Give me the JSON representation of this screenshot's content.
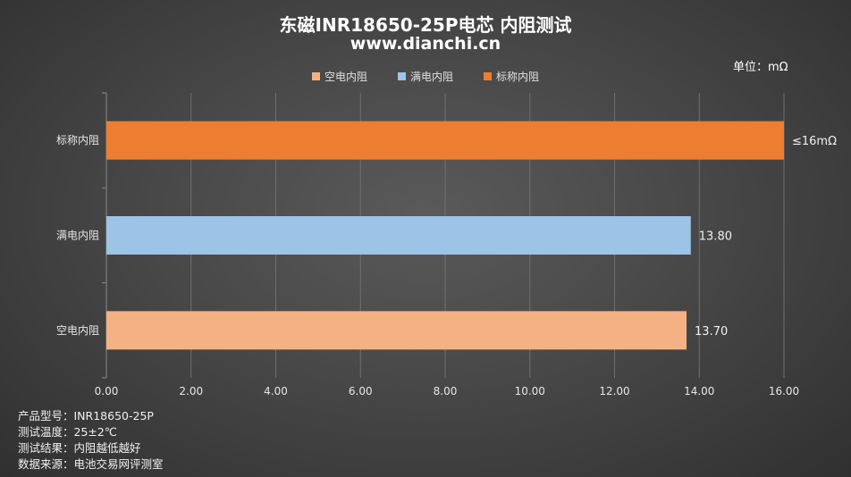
{
  "title_line1": "东磁INR18650-25P电芯 内阻测试",
  "title_line2": "www.dianchi.cn",
  "unit_label": "单位：mΩ",
  "legend": [
    {
      "label": "空电内阻",
      "color": "#F4B183"
    },
    {
      "label": "满电内阻",
      "color": "#9DC3E6"
    },
    {
      "label": "标称内阻",
      "color": "#ED7D31"
    }
  ],
  "footnotes": [
    "产品型号：INR18650-25P",
    "测试温度：25±2℃",
    "测试结果：内阻越低越好",
    "数据来源：电池交易网评测室"
  ],
  "chart_data": {
    "type": "bar",
    "orientation": "horizontal",
    "title": "东磁INR18650-25P电芯 内阻测试",
    "subtitle": "www.dianchi.cn",
    "unit": "mΩ",
    "categories": [
      "标称内阻",
      "满电内阻",
      "空电内阻"
    ],
    "values": [
      16.0,
      13.8,
      13.7
    ],
    "value_labels": [
      "≤16mΩ",
      "13.80",
      "13.70"
    ],
    "colors": [
      "#ED7D31",
      "#9DC3E6",
      "#F4B183"
    ],
    "xlim": [
      0,
      16
    ],
    "xticks": [
      "0.00",
      "2.00",
      "4.00",
      "6.00",
      "8.00",
      "10.00",
      "12.00",
      "14.00",
      "16.00"
    ],
    "grid": true,
    "legend_position": "top"
  }
}
